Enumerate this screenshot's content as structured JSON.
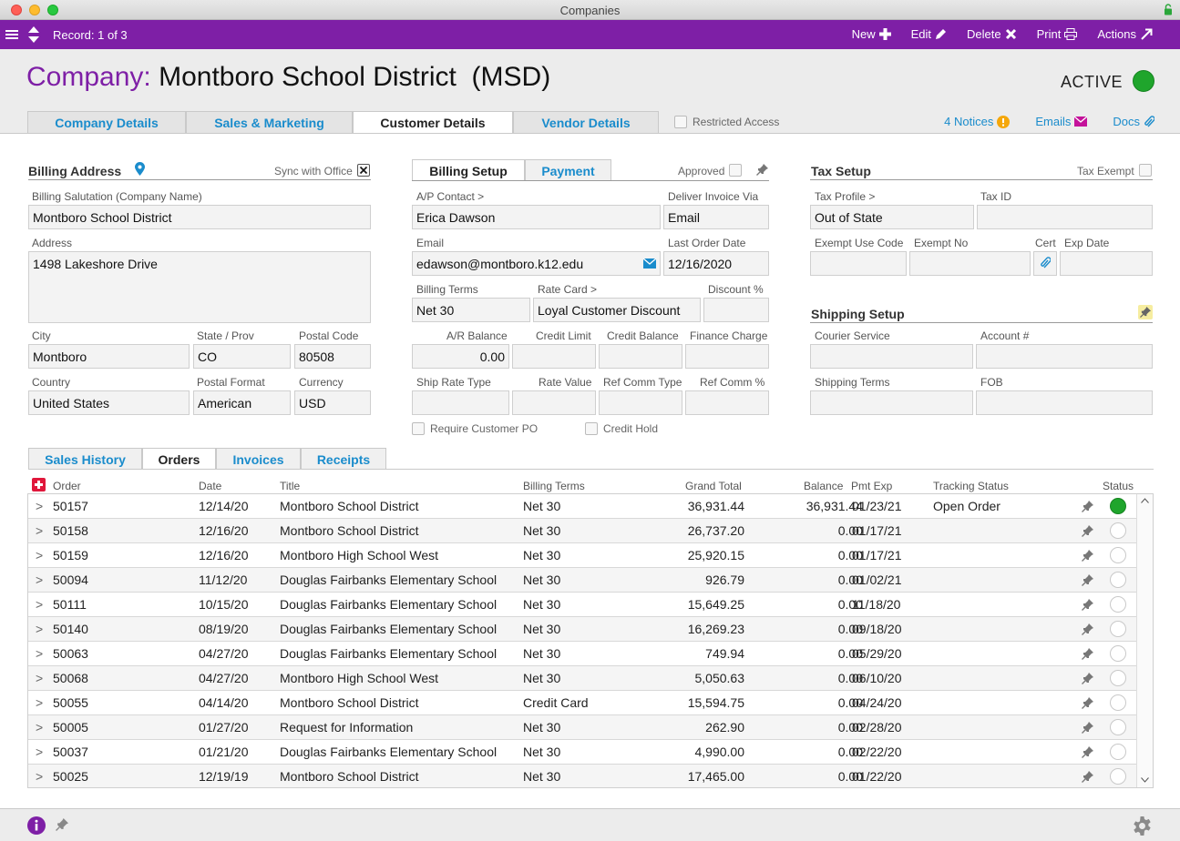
{
  "window": {
    "title": "Companies"
  },
  "toolbar": {
    "record": "Record: 1 of 3",
    "new_label": "New",
    "edit_label": "Edit",
    "delete_label": "Delete",
    "print_label": "Print",
    "actions_label": "Actions"
  },
  "header": {
    "label": "Company:",
    "name": "Montboro School District  (MSD)",
    "status": "ACTIVE",
    "status_color": "#1fa52c",
    "tabs": [
      "Company Details",
      "Sales & Marketing",
      "Customer Details",
      "Vendor Details"
    ],
    "restricted": "Restricted Access",
    "notices": "4 Notices",
    "emails": "Emails",
    "docs": "Docs"
  },
  "billing": {
    "title": "Billing Address",
    "sync": "Sync with Office",
    "salutation_label": "Billing Salutation (Company Name)",
    "salutation": "Montboro School District",
    "address_label": "Address",
    "address": "1498 Lakeshore Drive",
    "city_label": "City",
    "city": "Montboro",
    "state_label": "State / Prov",
    "state": "CO",
    "postal_label": "Postal Code",
    "postal": "80508",
    "country_label": "Country",
    "country": "United States",
    "format_label": "Postal Format",
    "format": "American",
    "currency_label": "Currency",
    "currency": "USD"
  },
  "setup": {
    "tab_billing": "Billing Setup",
    "tab_payment": "Payment",
    "approved": "Approved",
    "ap_label": "A/P Contact >",
    "ap": "Erica Dawson",
    "deliver_label": "Deliver Invoice Via",
    "deliver": "Email",
    "email_label": "Email",
    "email": "edawson@montboro.k12.edu",
    "last_order_label": "Last Order Date",
    "last_order": "12/16/2020",
    "terms_label": "Billing Terms",
    "terms": "Net 30",
    "rate_label": "Rate Card >",
    "rate": "Loyal Customer Discount",
    "discount_label": "Discount %",
    "discount": "",
    "ar_label": "A/R Balance",
    "ar": "0.00",
    "credit_limit_label": "Credit Limit",
    "credit_limit": "",
    "credit_balance_label": "Credit Balance",
    "credit_balance": "",
    "finance_label": "Finance Charge",
    "finance": "",
    "ship_rate_label": "Ship Rate Type",
    "ship_rate": "",
    "rate_value_label": "Rate Value",
    "rate_value": "",
    "ref_comm_type_label": "Ref Comm Type",
    "ref_comm_type": "",
    "ref_comm_pct_label": "Ref Comm %",
    "ref_comm_pct": "",
    "require_po": "Require Customer PO",
    "credit_hold": "Credit Hold"
  },
  "tax": {
    "title": "Tax Setup",
    "exempt": "Tax Exempt",
    "profile_label": "Tax Profile >",
    "profile": "Out of State",
    "taxid_label": "Tax ID",
    "taxid": "",
    "exempt_use_label": "Exempt Use Code",
    "exempt_no_label": "Exempt No",
    "cert_label": "Cert",
    "exp_label": "Exp Date"
  },
  "shipping": {
    "title": "Shipping Setup",
    "courier_label": "Courier Service",
    "account_label": "Account #",
    "terms_label": "Shipping Terms",
    "fob_label": "FOB"
  },
  "orders": {
    "tabs": [
      "Sales History",
      "Orders",
      "Invoices",
      "Receipts"
    ],
    "columns": [
      "Order",
      "Date",
      "Title",
      "Billing Terms",
      "Grand Total",
      "Balance",
      "Pmt Exp",
      "Tracking Status",
      "Status"
    ],
    "rows": [
      {
        "order": "50157",
        "date": "12/14/20",
        "title": "Montboro School District",
        "terms": "Net 30",
        "total": "36,931.44",
        "balance": "36,931.44",
        "pmt": "01/23/21",
        "tracking": "Open Order",
        "active": true
      },
      {
        "order": "50158",
        "date": "12/16/20",
        "title": "Montboro School District",
        "terms": "Net 30",
        "total": "26,737.20",
        "balance": "0.00",
        "pmt": "01/17/21",
        "tracking": "",
        "active": false
      },
      {
        "order": "50159",
        "date": "12/16/20",
        "title": "Montboro High School West",
        "terms": "Net 30",
        "total": "25,920.15",
        "balance": "0.00",
        "pmt": "01/17/21",
        "tracking": "",
        "active": false
      },
      {
        "order": "50094",
        "date": "11/12/20",
        "title": "Douglas Fairbanks Elementary School",
        "terms": "Net 30",
        "total": "926.79",
        "balance": "0.00",
        "pmt": "01/02/21",
        "tracking": "",
        "active": false
      },
      {
        "order": "50111",
        "date": "10/15/20",
        "title": "Douglas Fairbanks Elementary School",
        "terms": "Net 30",
        "total": "15,649.25",
        "balance": "0.00",
        "pmt": "11/18/20",
        "tracking": "",
        "active": false
      },
      {
        "order": "50140",
        "date": "08/19/20",
        "title": "Douglas Fairbanks Elementary School",
        "terms": "Net 30",
        "total": "16,269.23",
        "balance": "0.00",
        "pmt": "09/18/20",
        "tracking": "",
        "active": false
      },
      {
        "order": "50063",
        "date": "04/27/20",
        "title": "Douglas Fairbanks Elementary School",
        "terms": "Net 30",
        "total": "749.94",
        "balance": "0.00",
        "pmt": "05/29/20",
        "tracking": "",
        "active": false
      },
      {
        "order": "50068",
        "date": "04/27/20",
        "title": "Montboro High School West",
        "terms": "Net 30",
        "total": "5,050.63",
        "balance": "0.00",
        "pmt": "06/10/20",
        "tracking": "",
        "active": false
      },
      {
        "order": "50055",
        "date": "04/14/20",
        "title": "Montboro School District",
        "terms": "Credit Card",
        "total": "15,594.75",
        "balance": "0.00",
        "pmt": "04/24/20",
        "tracking": "",
        "active": false
      },
      {
        "order": "50005",
        "date": "01/27/20",
        "title": "Request for Information",
        "terms": "Net 30",
        "total": "262.90",
        "balance": "0.00",
        "pmt": "02/28/20",
        "tracking": "",
        "active": false
      },
      {
        "order": "50037",
        "date": "01/21/20",
        "title": "Douglas Fairbanks Elementary School",
        "terms": "Net 30",
        "total": "4,990.00",
        "balance": "0.00",
        "pmt": "02/22/20",
        "tracking": "",
        "active": false
      },
      {
        "order": "50025",
        "date": "12/19/19",
        "title": "Montboro School District",
        "terms": "Net 30",
        "total": "17,465.00",
        "balance": "0.00",
        "pmt": "01/22/20",
        "tracking": "",
        "active": false
      }
    ]
  },
  "colors": {
    "accent": "#7e1fa6",
    "link": "#1a8ccc",
    "active": "#1fa52c"
  }
}
